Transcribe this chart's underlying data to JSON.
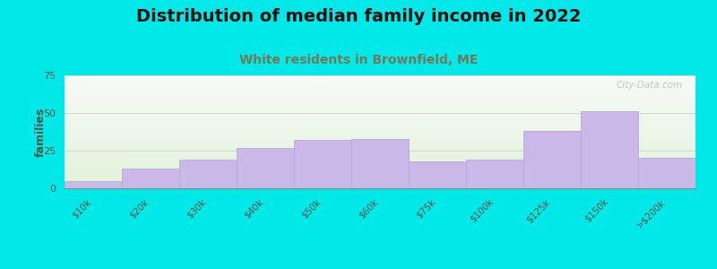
{
  "title": "Distribution of median family income in 2022",
  "subtitle": "White residents in Brownfield, ME",
  "categories": [
    "$10k",
    "$20k",
    "$30k",
    "$40k",
    "$50k",
    "$60k",
    "$75k",
    "$100k",
    "$125k",
    "$150k",
    ">$200k"
  ],
  "values": [
    5,
    13,
    19,
    27,
    32,
    33,
    18,
    19,
    38,
    51,
    20
  ],
  "bar_color": "#c9b8e8",
  "bar_edge_color": "#b8a8d8",
  "background_color": "#00e8e8",
  "title_fontsize": 14,
  "subtitle_fontsize": 10,
  "subtitle_color": "#777755",
  "ylabel": "families",
  "ylim": [
    0,
    75
  ],
  "yticks": [
    0,
    25,
    50,
    75
  ],
  "watermark": "City-Data.com"
}
